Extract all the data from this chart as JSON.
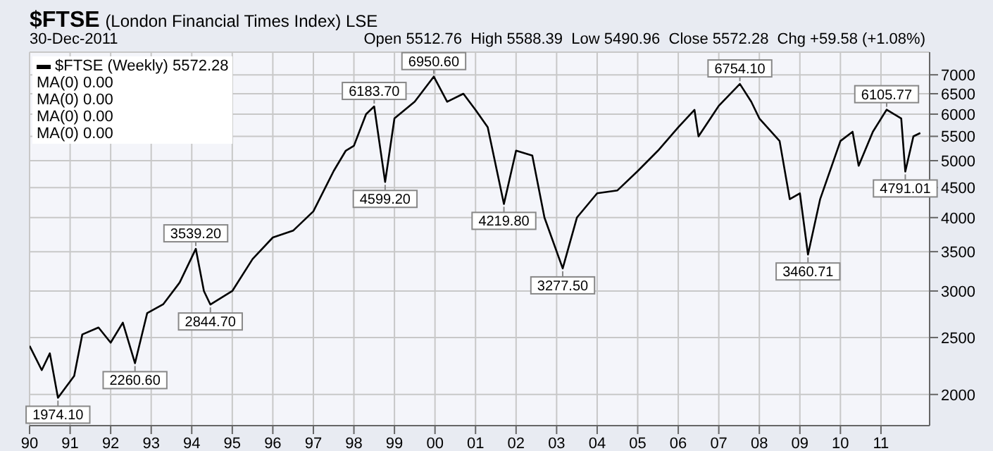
{
  "chart_data": {
    "type": "line",
    "title": "$FTSE",
    "subtitle": "(London Financial Times Index) LSE",
    "annotations": [
      "30-Dec-2011",
      "Open 5512.76  High 5588.39  Low 5490.96  Close 5572.28  Chg +59.58 (+1.08%)",
      "MA(0) 0.00",
      "MA(0) 0.00",
      "MA(0) 0.00",
      "MA(0) 0.00"
    ],
    "x": [
      1990.0,
      1990.3,
      1990.5,
      1990.7,
      1991.1,
      1991.3,
      1991.7,
      1992.0,
      1992.3,
      1992.6,
      1992.9,
      1993.3,
      1993.7,
      1994.1,
      1994.3,
      1994.46,
      1995.0,
      1995.5,
      1996.0,
      1996.5,
      1997.0,
      1997.5,
      1997.8,
      1998.0,
      1998.3,
      1998.5,
      1998.77,
      1999.0,
      1999.5,
      1999.97,
      2000.3,
      2000.7,
      2001.0,
      2001.3,
      2001.7,
      2002.0,
      2002.4,
      2002.7,
      2003.15,
      2003.5,
      2004.0,
      2004.5,
      2005.0,
      2005.5,
      2006.0,
      2006.4,
      2006.5,
      2007.0,
      2007.52,
      2007.8,
      2008.0,
      2008.5,
      2008.75,
      2009.0,
      2009.2,
      2009.5,
      2010.0,
      2010.3,
      2010.45,
      2010.8,
      2011.14,
      2011.5,
      2011.6,
      2011.8,
      2011.97
    ],
    "series": [
      {
        "name": "$FTSE (Weekly) 5572.28",
        "color": "#000000",
        "values": [
          2420,
          2200,
          2350,
          1974.1,
          2150,
          2530,
          2600,
          2450,
          2650,
          2260.6,
          2750,
          2850,
          3100,
          3539.2,
          3000,
          2844.7,
          3000,
          3400,
          3700,
          3800,
          4100,
          4800,
          5200,
          5300,
          6000,
          6183.7,
          4599.2,
          5900,
          6300,
          6950.6,
          6300,
          6500,
          6100,
          5700,
          4219.8,
          5200,
          5100,
          4000,
          3277.5,
          4000,
          4400,
          4450,
          4800,
          5200,
          5700,
          6100,
          5500,
          6200,
          6754.1,
          6300,
          5900,
          5400,
          4300,
          4400,
          3460.71,
          4300,
          5400,
          5600,
          4900,
          5600,
          6105.77,
          5900,
          4791.01,
          5500,
          5572.28
        ],
        "value_labels": [
          null,
          null,
          null,
          "1974.10",
          null,
          null,
          null,
          null,
          null,
          "2260.60",
          null,
          null,
          null,
          "3539.20",
          null,
          "2844.70",
          null,
          null,
          null,
          null,
          null,
          null,
          null,
          null,
          null,
          "6183.70",
          "4599.20",
          null,
          null,
          "6950.60",
          null,
          null,
          null,
          null,
          "4219.80",
          null,
          null,
          null,
          "3277.50",
          null,
          null,
          null,
          null,
          null,
          null,
          null,
          null,
          null,
          "6754.10",
          null,
          null,
          null,
          null,
          null,
          "3460.71",
          null,
          null,
          null,
          null,
          null,
          "6105.77",
          null,
          "4791.01",
          null,
          null
        ]
      }
    ],
    "xlim": [
      1990,
      2012.2
    ],
    "xticks": [
      {
        "value": 1990,
        "label": "90"
      },
      {
        "value": 1991,
        "label": "91"
      },
      {
        "value": 1992,
        "label": "92"
      },
      {
        "value": 1993,
        "label": "93"
      },
      {
        "value": 1994,
        "label": "94"
      },
      {
        "value": 1995,
        "label": "95"
      },
      {
        "value": 1996,
        "label": "96"
      },
      {
        "value": 1997,
        "label": "97"
      },
      {
        "value": 1998,
        "label": "98"
      },
      {
        "value": 1999,
        "label": "99"
      },
      {
        "value": 2000,
        "label": "00"
      },
      {
        "value": 2001,
        "label": "01"
      },
      {
        "value": 2002,
        "label": "02"
      },
      {
        "value": 2003,
        "label": "03"
      },
      {
        "value": 2004,
        "label": "04"
      },
      {
        "value": 2005,
        "label": "05"
      },
      {
        "value": 2006,
        "label": "06"
      },
      {
        "value": 2007,
        "label": "07"
      },
      {
        "value": 2008,
        "label": "08"
      },
      {
        "value": 2009,
        "label": "09"
      },
      {
        "value": 2010,
        "label": "10"
      },
      {
        "value": 2011,
        "label": "11"
      }
    ],
    "ylim": [
      1770,
      7650
    ],
    "yticks": [
      2000,
      2500,
      3000,
      3500,
      4000,
      4500,
      5000,
      5500,
      6000,
      6500,
      7000
    ],
    "log": true,
    "grid": true,
    "legend": "top left",
    "marker": "none",
    "line_style": "solid"
  }
}
